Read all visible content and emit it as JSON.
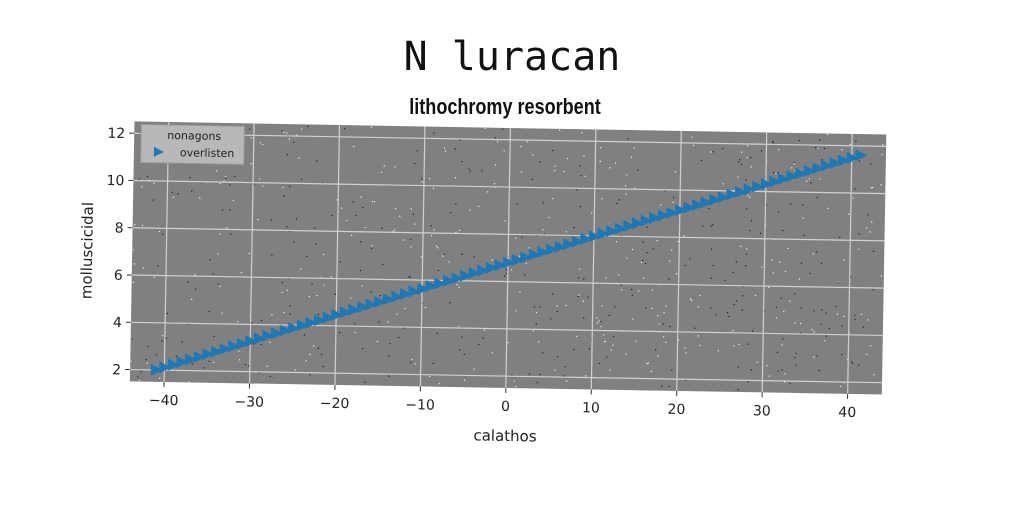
{
  "chart_data": {
    "type": "scatter",
    "suptitle": "N luracan",
    "title": "lithochromy resorbent",
    "xlabel": "calathos",
    "ylabel": "molluscicidal",
    "xlim": [
      -44,
      44
    ],
    "ylim": [
      1.5,
      12.5
    ],
    "xticks": [
      -40,
      -30,
      -20,
      -10,
      0,
      10,
      20,
      30,
      40
    ],
    "yticks": [
      2,
      4,
      6,
      8,
      10,
      12
    ],
    "grid": true,
    "legend": {
      "title": "nonagons",
      "placement": "top-left",
      "entries": [
        "overlisten"
      ]
    },
    "series": [
      {
        "name": "overlisten",
        "marker": "triangle-right",
        "color": "#1f77b4",
        "x_start": -41,
        "x_end": 41,
        "x_step": 1,
        "y_intercept": 6.8,
        "y_slope": 0.1171
      }
    ]
  },
  "colors": {
    "plot_bg": "#808080",
    "grid": "#d0d0d0",
    "series": "#1f77b4"
  }
}
